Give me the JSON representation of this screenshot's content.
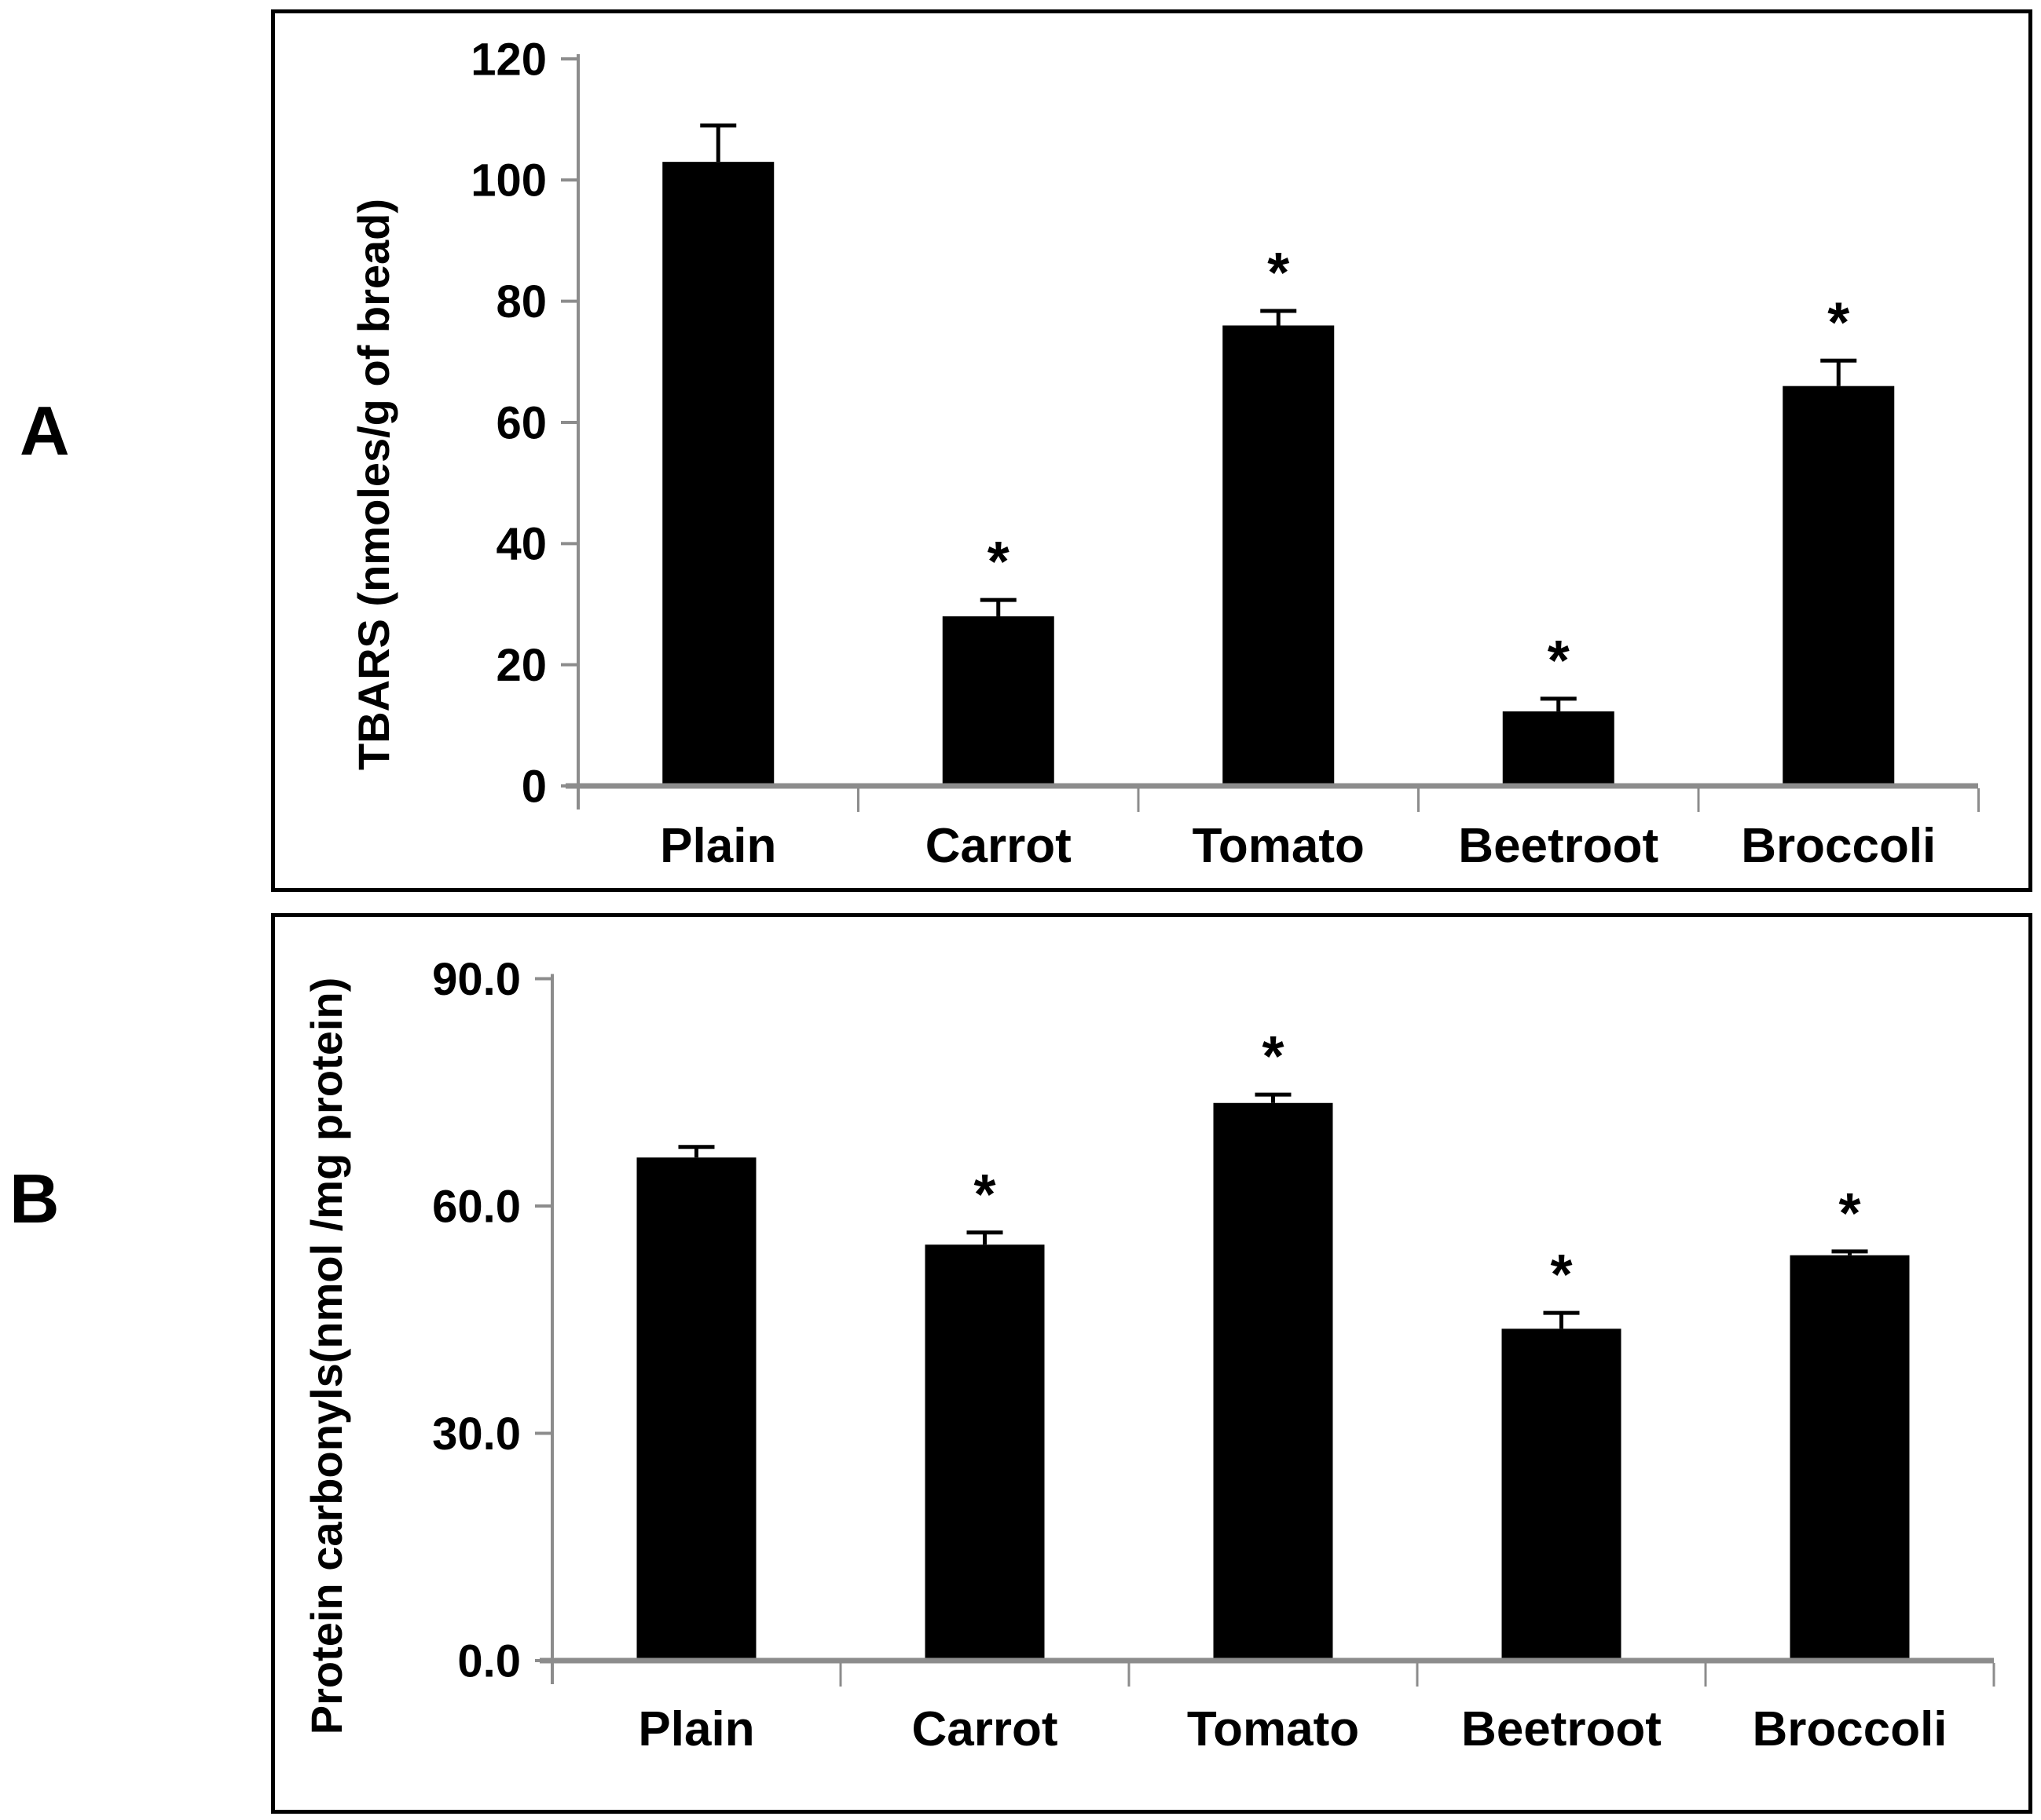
{
  "figure": {
    "panel_a_label": "A",
    "panel_b_label": "B",
    "background": "#ffffff",
    "bar_color": "#000000",
    "axis_color": "#8c8c8c",
    "text_color": "#000000",
    "sig_marker": "*"
  },
  "chart_data": [
    {
      "type": "bar",
      "panel": "A",
      "ylabel": "TBARS (nmoles/g of bread)",
      "categories": [
        "Plain",
        "Carrot",
        "Tomato",
        "Beetroot",
        "Broccoli"
      ],
      "values": [
        103,
        28,
        76,
        12.3,
        66
      ],
      "errors_plus": [
        6,
        2.7,
        2.4,
        2.1,
        4.2
      ],
      "significance": [
        "",
        "*",
        "*",
        "*",
        "*"
      ],
      "ylim": [
        0,
        120
      ],
      "yticks": [
        0,
        20,
        40,
        60,
        80,
        100,
        120
      ],
      "ytick_labels": [
        "0",
        "20",
        "40",
        "60",
        "80",
        "100",
        "120"
      ],
      "grid": false,
      "legend_position": "none"
    },
    {
      "type": "bar",
      "panel": "B",
      "ylabel": "Protein carbonyls(nmol /mg protein)",
      "categories": [
        "Plain",
        "Carrot",
        "Tomato",
        "Beetroot",
        "Broccoli"
      ],
      "values": [
        66.4,
        54.9,
        73.6,
        43.8,
        53.5
      ],
      "errors_plus": [
        1.4,
        1.6,
        1.1,
        2.1,
        0.5
      ],
      "significance": [
        "",
        "*",
        "*",
        "*",
        "*"
      ],
      "ylim": [
        0,
        90
      ],
      "yticks": [
        0,
        30,
        60,
        90
      ],
      "ytick_labels": [
        "0.0",
        "30.0",
        "60.0",
        "90.0"
      ],
      "grid": false,
      "legend_position": "none"
    }
  ]
}
